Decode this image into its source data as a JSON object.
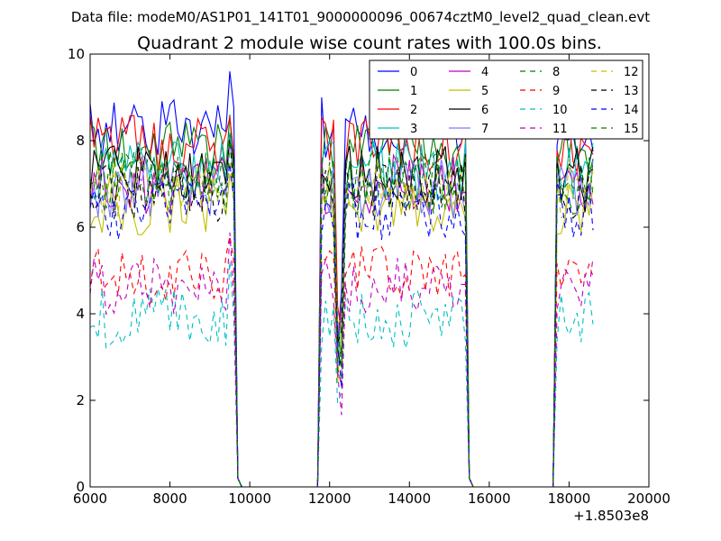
{
  "suptitle": "Data file: modeM0/AS1P01_141T01_9000000096_00674cztM0_level2_quad_clean.evt",
  "chart_data": {
    "type": "line",
    "title": "Quadrant 2 module wise count rates with 100.0s bins.",
    "xlabel": "",
    "ylabel": "",
    "x_offset_label": "+1.8503e8",
    "xlim": [
      6000,
      20000
    ],
    "ylim": [
      0,
      10
    ],
    "x_ticks": [
      6000,
      8000,
      10000,
      12000,
      14000,
      16000,
      18000,
      20000
    ],
    "x_tick_labels": [
      "6000",
      "8000",
      "10000",
      "12000",
      "14000",
      "16000",
      "18000",
      "20000"
    ],
    "y_ticks": [
      0,
      2,
      4,
      6,
      8,
      10
    ],
    "y_tick_labels": [
      "0",
      "2",
      "4",
      "6",
      "8",
      "10"
    ],
    "bin_size_s": 100,
    "segments": [
      {
        "start": 6000,
        "end": 9600
      },
      {
        "start": 11800,
        "end": 15400
      },
      {
        "start": 17700,
        "end": 18600
      }
    ],
    "gap_level": 0,
    "notches": [
      12200,
      12300
    ],
    "legend_position": "top-right",
    "legend_columns": 4,
    "series": [
      {
        "name": "0",
        "color": "#0000ff",
        "dash": "solid",
        "level": 8.3
      },
      {
        "name": "1",
        "color": "#008000",
        "dash": "solid",
        "level": 7.8
      },
      {
        "name": "2",
        "color": "#ff0000",
        "dash": "solid",
        "level": 7.9
      },
      {
        "name": "3",
        "color": "#00bfbf",
        "dash": "solid",
        "level": 7.3
      },
      {
        "name": "4",
        "color": "#bf00bf",
        "dash": "solid",
        "level": 7.0
      },
      {
        "name": "5",
        "color": "#bfbf00",
        "dash": "solid",
        "level": 6.5
      },
      {
        "name": "6",
        "color": "#000000",
        "dash": "solid",
        "level": 7.2
      },
      {
        "name": "7",
        "color": "#7b7bff",
        "dash": "solid",
        "level": 6.9
      },
      {
        "name": "8",
        "color": "#008000",
        "dash": "dashed",
        "level": 7.1
      },
      {
        "name": "9",
        "color": "#ff0000",
        "dash": "dashed",
        "level": 4.9
      },
      {
        "name": "10",
        "color": "#00bfbf",
        "dash": "dashed",
        "level": 3.9
      },
      {
        "name": "11",
        "color": "#bf00bf",
        "dash": "dashed",
        "level": 4.6
      },
      {
        "name": "12",
        "color": "#bfbf00",
        "dash": "dashed",
        "level": 6.9
      },
      {
        "name": "13",
        "color": "#000000",
        "dash": "dashed",
        "level": 6.8
      },
      {
        "name": "14",
        "color": "#0000ff",
        "dash": "dashed",
        "level": 6.4
      },
      {
        "name": "15",
        "color": "#008000",
        "dash": "dashed",
        "level": 7.0
      }
    ]
  }
}
